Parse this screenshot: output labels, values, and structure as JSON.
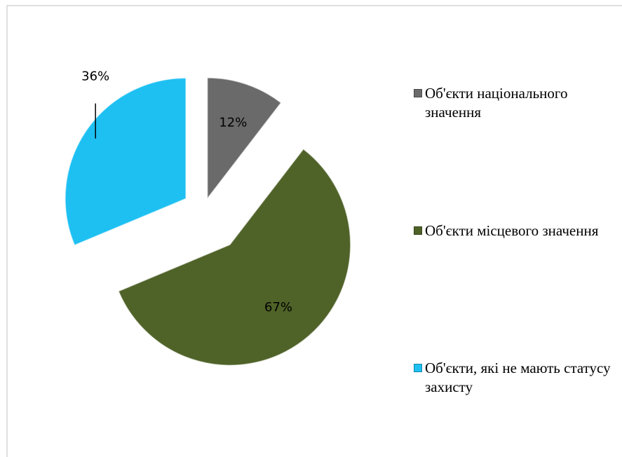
{
  "chart_data": {
    "type": "pie",
    "categories": [
      "Об'єкти національного значення",
      "Об'єкти місцевого значення",
      "Об'єкти, які не мають статусу захисту"
    ],
    "values": [
      12,
      67,
      36
    ],
    "value_labels": [
      "12%",
      "67%",
      "36%"
    ],
    "colors": [
      "#6a6a6a",
      "#4f6228",
      "#1ec0f2"
    ],
    "legend": "right"
  }
}
